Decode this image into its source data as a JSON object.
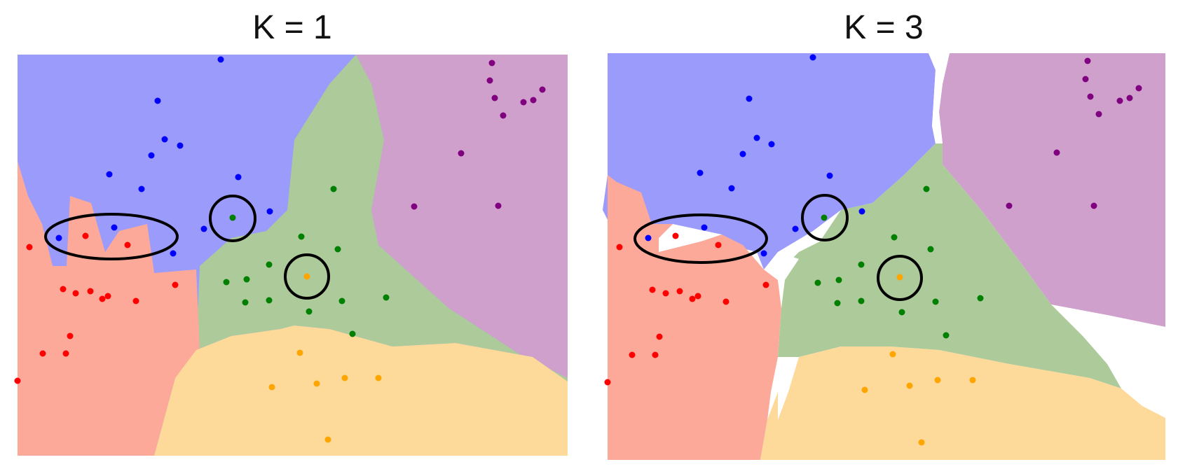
{
  "panels": [
    {
      "title": "K = 1"
    },
    {
      "title": "K = 3"
    }
  ],
  "colors": {
    "blue_region": "#9b9bfb",
    "red_region": "#fca99a",
    "green_region": "#acca9a",
    "orange_region": "#fdd99a",
    "purple_region": "#d0a0cd",
    "blue_point": "#0000ff",
    "red_point": "#ff0000",
    "green_point": "#008000",
    "orange_point": "#ffa500",
    "purple_point": "#800080",
    "annotation": "#000000"
  }
}
